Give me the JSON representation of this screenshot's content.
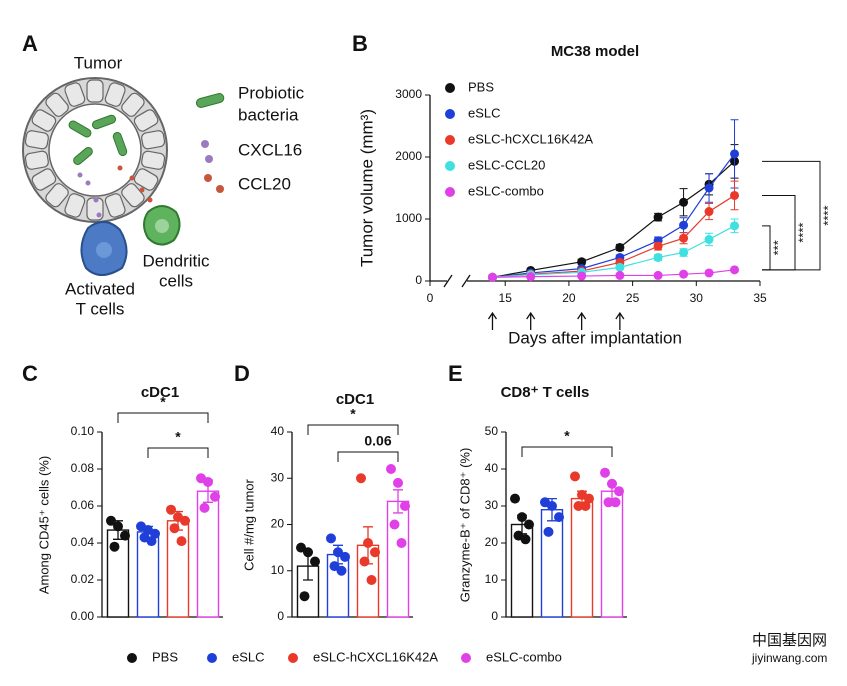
{
  "panel_a": {
    "letter": "A",
    "title": "Tumor",
    "bacteria": [
      "Probiotic",
      "bacteria"
    ],
    "cxcl16": "CXCL16",
    "ccl20": "CCL20",
    "t_cells": [
      "Activated",
      "T cells"
    ],
    "dendritic": [
      "Dendritic",
      "cells"
    ]
  },
  "chart_data": [
    {
      "type": "line",
      "panel": "B",
      "title": "MC38 model",
      "y_label": "Tumor volume (mm³)",
      "x_label": "Days after implantation",
      "x": [
        14,
        17,
        21,
        24,
        27,
        29,
        31,
        33
      ],
      "xlim": [
        0,
        35
      ],
      "xticks": [
        0,
        15,
        20,
        25,
        30,
        35
      ],
      "axis_break": [
        2,
        12
      ],
      "ylim": [
        0,
        3000
      ],
      "yticks": [
        0,
        1000,
        2000,
        3000
      ],
      "arrows": [
        14,
        17,
        21,
        24
      ],
      "series": [
        {
          "name": "PBS",
          "color": "#111111",
          "values": [
            60,
            170,
            310,
            540,
            1030,
            1270,
            1560,
            1930
          ],
          "errors": [
            10,
            25,
            40,
            50,
            60,
            220,
            170,
            270
          ]
        },
        {
          "name": "eSLC",
          "color": "#1f3fd8",
          "values": [
            60,
            130,
            200,
            380,
            650,
            900,
            1500,
            2050
          ],
          "errors": [
            10,
            20,
            30,
            40,
            60,
            120,
            230,
            550
          ]
        },
        {
          "name": "eSLC-hCXCL16K42A",
          "color": "#e8392a",
          "values": [
            60,
            110,
            160,
            300,
            560,
            690,
            1120,
            1380
          ],
          "errors": [
            10,
            20,
            25,
            40,
            60,
            90,
            130,
            230
          ]
        },
        {
          "name": "eSLC-CCL20",
          "color": "#3fe0e0",
          "values": [
            60,
            100,
            140,
            220,
            380,
            460,
            670,
            890
          ],
          "errors": [
            10,
            15,
            20,
            30,
            50,
            60,
            100,
            110
          ]
        },
        {
          "name": "eSLC-combo",
          "color": "#e040e8",
          "values": [
            60,
            70,
            80,
            90,
            90,
            110,
            130,
            180
          ],
          "errors": [
            10,
            10,
            10,
            15,
            15,
            20,
            20,
            30
          ]
        }
      ],
      "annotations": [
        {
          "text": "***",
          "from": 4,
          "to": 3
        },
        {
          "text": "****",
          "from": 4,
          "to": 2
        },
        {
          "text": "****",
          "from": 4,
          "to": 0
        }
      ]
    },
    {
      "type": "bardot",
      "panel": "C",
      "title": "cDC1",
      "y_label": "Among CD45⁺ cells (%)",
      "ylim": [
        0,
        0.1
      ],
      "yticks": [
        {
          "value": 0,
          "label": "0.00"
        },
        {
          "value": 0.02,
          "label": "0.02"
        },
        {
          "value": 0.04,
          "label": "0.04"
        },
        {
          "value": 0.06,
          "label": "0.06"
        },
        {
          "value": 0.08,
          "label": "0.08"
        },
        {
          "value": 0.1,
          "label": "0.10"
        }
      ],
      "values": [
        0.047,
        0.046,
        0.052,
        0.068
      ],
      "errors": [
        0.005,
        0.003,
        0.005,
        0.006
      ],
      "points": [
        [
          0.052,
          0.049,
          0.044,
          0.038
        ],
        [
          0.049,
          0.047,
          0.045,
          0.043,
          0.041
        ],
        [
          0.058,
          0.054,
          0.052,
          0.048,
          0.041
        ],
        [
          0.075,
          0.073,
          0.065,
          0.059
        ]
      ],
      "annotations": [
        {
          "text": "*",
          "from": 0,
          "to": 3
        },
        {
          "text": "*",
          "from": 1,
          "to": 3
        }
      ]
    },
    {
      "type": "bardot",
      "panel": "D",
      "title": "cDC1",
      "y_label": "Cell #/mg tumor",
      "ylim": [
        0,
        40
      ],
      "yticks": [
        0,
        10,
        20,
        30,
        40
      ],
      "values": [
        11,
        13.5,
        15.5,
        25
      ],
      "errors": [
        3,
        2,
        4,
        2.5
      ],
      "points": [
        [
          15,
          14,
          12,
          4.5
        ],
        [
          17,
          14,
          13,
          11,
          10
        ],
        [
          30,
          16,
          14,
          12,
          8
        ],
        [
          32,
          29,
          24,
          20,
          16
        ]
      ],
      "annotations": [
        {
          "text": "*",
          "from": 0,
          "to": 3
        },
        {
          "text": "0.06",
          "from": 1,
          "to": 3
        }
      ]
    },
    {
      "type": "bardot",
      "panel": "E",
      "title": "CD8⁺ T cells",
      "y_label": "Granzyme-B⁺ of CD8⁺ (%)",
      "ylim": [
        0,
        50
      ],
      "yticks": [
        0,
        10,
        20,
        30,
        40,
        50
      ],
      "values": [
        25,
        29,
        32,
        34
      ],
      "errors": [
        2.5,
        3,
        2,
        2
      ],
      "points": [
        [
          32,
          27,
          25,
          22,
          21
        ],
        [
          31,
          30,
          27,
          23
        ],
        [
          38,
          33,
          32,
          30,
          30
        ],
        [
          39,
          36,
          34,
          31,
          31
        ]
      ],
      "annotations": [
        {
          "text": "*",
          "from": 0,
          "to": 3
        }
      ]
    }
  ],
  "legend": {
    "names": [
      "PBS",
      "eSLC",
      "eSLC-hCXCL16K42A",
      "eSLC-combo"
    ],
    "colors": [
      "#111111",
      "#1f3fd8",
      "#e8392a",
      "#e040e8"
    ]
  },
  "watermark": {
    "cn": "中国基因网",
    "url": "jiyinwang.com"
  }
}
